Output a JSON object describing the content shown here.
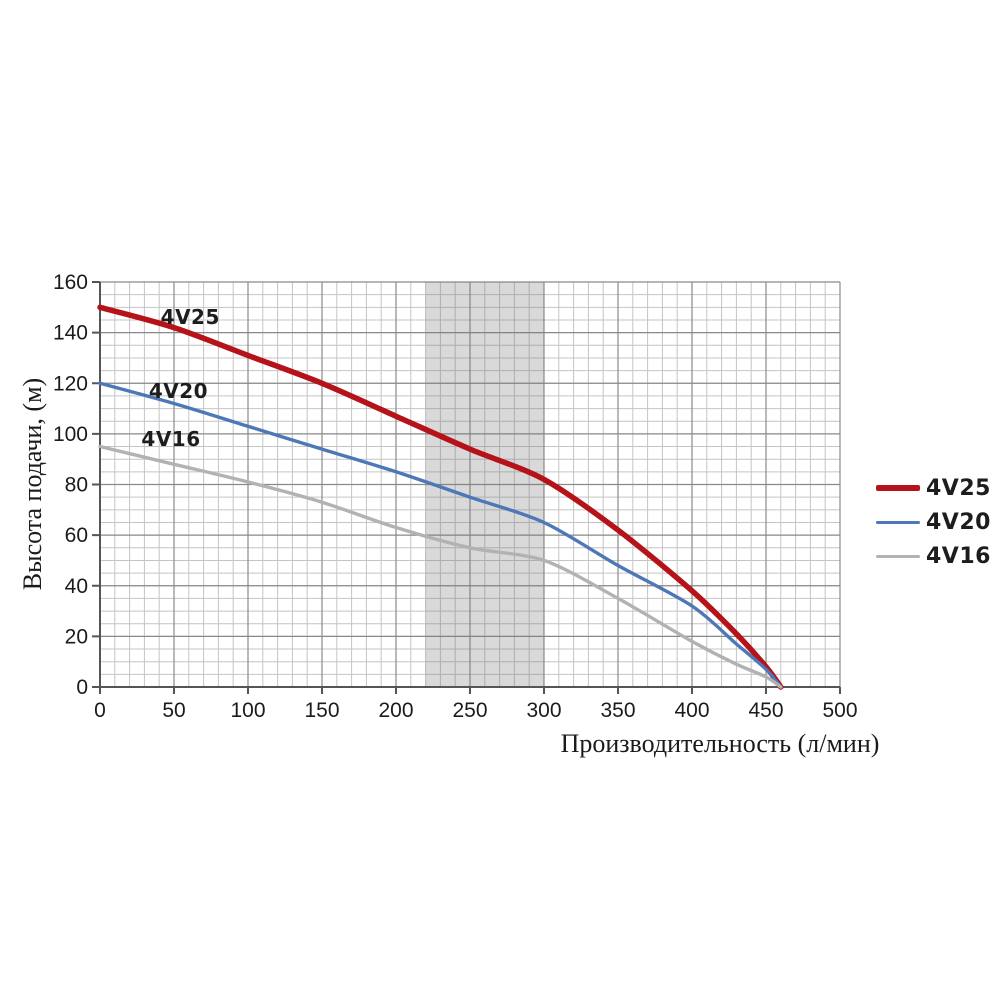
{
  "chart_data": {
    "type": "line",
    "title": "",
    "xlabel": "Производительность (л/мин)",
    "ylabel": "Высота подачи, (м)",
    "xlim": [
      0,
      500
    ],
    "ylim": [
      0,
      160
    ],
    "x_ticks": [
      0,
      50,
      100,
      150,
      200,
      250,
      300,
      350,
      400,
      450,
      500
    ],
    "y_ticks": [
      0,
      20,
      40,
      60,
      80,
      100,
      120,
      140,
      160
    ],
    "x_minor_step": 10,
    "y_minor_step": 5,
    "grid": "both",
    "legend_position": "right",
    "band": {
      "x_from": 220,
      "x_to": 300,
      "color": "#787878",
      "opacity": 0.28
    },
    "series": [
      {
        "name": "4V25",
        "color": "#b5121a",
        "stroke_width": 5.5,
        "points": [
          [
            0,
            150
          ],
          [
            50,
            142
          ],
          [
            100,
            131
          ],
          [
            150,
            120
          ],
          [
            200,
            107
          ],
          [
            250,
            94
          ],
          [
            300,
            82
          ],
          [
            350,
            62
          ],
          [
            400,
            38
          ],
          [
            430,
            21
          ],
          [
            450,
            8
          ],
          [
            460,
            0
          ]
        ]
      },
      {
        "name": "4V20",
        "color": "#4d77b7",
        "stroke_width": 3.4,
        "points": [
          [
            0,
            120
          ],
          [
            50,
            112
          ],
          [
            100,
            103
          ],
          [
            150,
            94
          ],
          [
            200,
            85
          ],
          [
            250,
            75
          ],
          [
            300,
            65
          ],
          [
            350,
            48
          ],
          [
            400,
            32
          ],
          [
            430,
            17
          ],
          [
            450,
            7
          ],
          [
            460,
            0
          ]
        ]
      },
      {
        "name": "4V16",
        "color": "#b2b2b2",
        "stroke_width": 3.4,
        "points": [
          [
            0,
            95
          ],
          [
            50,
            88
          ],
          [
            100,
            81
          ],
          [
            150,
            73
          ],
          [
            200,
            63
          ],
          [
            250,
            55
          ],
          [
            300,
            50
          ],
          [
            350,
            35
          ],
          [
            400,
            18
          ],
          [
            430,
            9
          ],
          [
            450,
            4
          ],
          [
            460,
            0
          ]
        ]
      }
    ],
    "annotations": [
      {
        "series": 0,
        "label": "4V25",
        "x": 61,
        "y": 146
      },
      {
        "series": 1,
        "label": "4V20",
        "x": 53,
        "y": 117
      },
      {
        "series": 2,
        "label": "4V16",
        "x": 48,
        "y": 98
      }
    ],
    "colors": {
      "axis": "#555555",
      "grid_major": "#8a8a8a",
      "grid_minor": "#c4c4c4",
      "tick_text": "#1b1b1b",
      "background": "#ffffff"
    }
  }
}
